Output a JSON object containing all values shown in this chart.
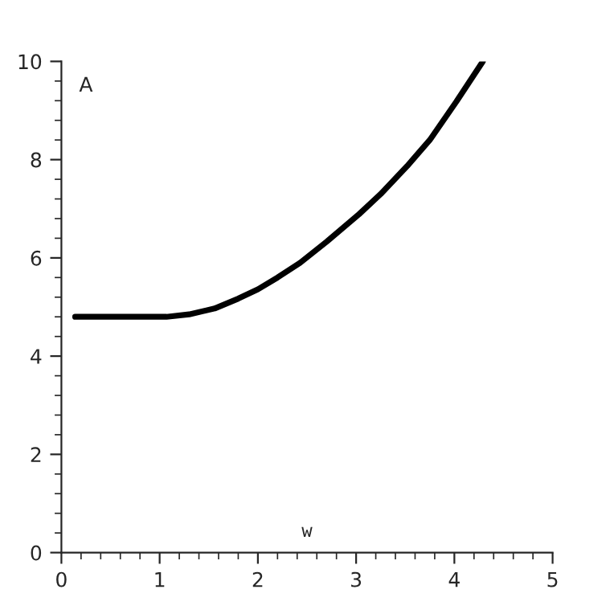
{
  "chart_data": {
    "type": "line",
    "xlabel": "w",
    "ylabel": "A",
    "x": [
      0.14,
      0.5,
      1.0,
      1.07,
      1.3,
      1.56,
      1.8,
      2.0,
      2.2,
      2.43,
      2.7,
      3.03,
      3.25,
      3.52,
      3.75,
      4.02,
      4.29
    ],
    "series": [
      {
        "color": "#000000",
        "values": [
          4.8,
          4.8,
          4.8,
          4.8,
          4.85,
          4.97,
          5.17,
          5.36,
          5.6,
          5.9,
          6.33,
          6.89,
          7.3,
          7.87,
          8.4,
          9.18,
          10.0
        ]
      }
    ],
    "xlim": [
      0,
      5
    ],
    "ylim": [
      0,
      10
    ],
    "xticks": [
      0,
      1,
      2,
      3,
      4,
      5
    ],
    "yticks": [
      0,
      2,
      4,
      6,
      8,
      10
    ],
    "grid": false,
    "legend": false,
    "marker": "none",
    "line_style": "solid"
  }
}
